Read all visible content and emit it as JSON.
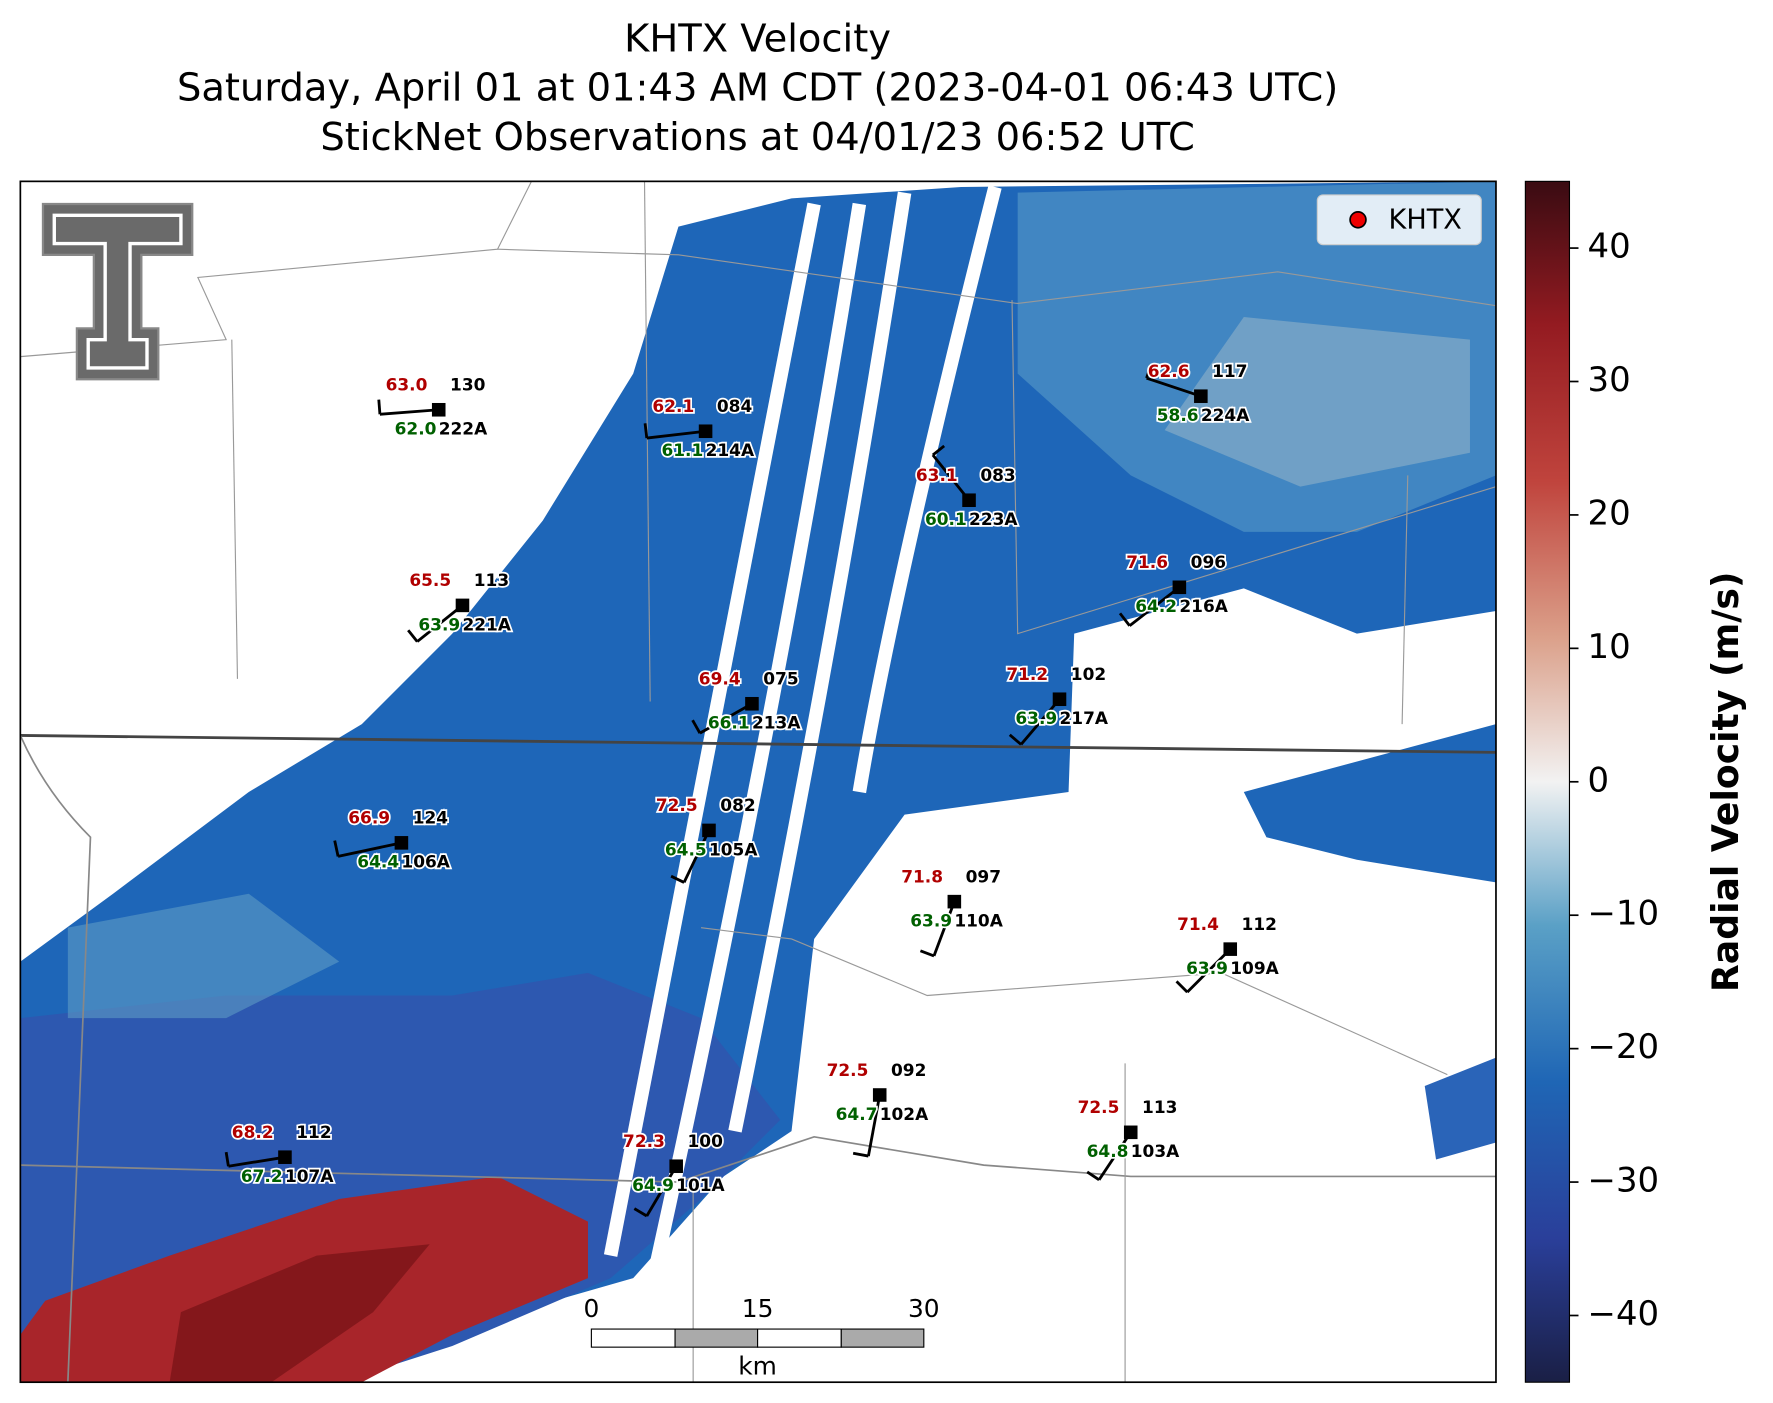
{
  "title": {
    "line1": "KHTX Velocity",
    "line2": "Saturday, April 01 at 01:43 AM CDT (2023-04-01 06:43 UTC)",
    "line3": "StickNet Observations at 04/01/23 06:52 UTC"
  },
  "legend": {
    "label": "KHTX"
  },
  "colorbar": {
    "label": "Radial Velocity (m/s)",
    "lim": [
      -45,
      45
    ],
    "ticks": [
      {
        "value": -40,
        "label": "−40"
      },
      {
        "value": -30,
        "label": "−30"
      },
      {
        "value": -20,
        "label": "−20"
      },
      {
        "value": -10,
        "label": "−10"
      },
      0,
      10,
      20,
      30,
      40
    ]
  },
  "scale_bar": {
    "ticks": [
      "0",
      "15",
      "30"
    ],
    "unit": "km"
  },
  "stations": [
    {
      "temp": "63.0",
      "dewpoint": "62.0",
      "wind_dir": "130",
      "id": "222A"
    },
    {
      "temp": "62.1",
      "dewpoint": "61.1",
      "wind_dir": "084",
      "id": "214A"
    },
    {
      "temp": "62.6",
      "dewpoint": "58.6",
      "wind_dir": "117",
      "id": "224A"
    },
    {
      "temp": "63.1",
      "dewpoint": "60.1",
      "wind_dir": "083",
      "id": "223A"
    },
    {
      "temp": "65.5",
      "dewpoint": "63.9",
      "wind_dir": "113",
      "id": "221A"
    },
    {
      "temp": "71.6",
      "dewpoint": "64.2",
      "wind_dir": "096",
      "id": "216A"
    },
    {
      "temp": "69.4",
      "dewpoint": "66.1",
      "wind_dir": "075",
      "id": "213A"
    },
    {
      "temp": "71.2",
      "dewpoint": "63.9",
      "wind_dir": "102",
      "id": "217A"
    },
    {
      "temp": "66.9",
      "dewpoint": "64.4",
      "wind_dir": "124",
      "id": "106A"
    },
    {
      "temp": "72.5",
      "dewpoint": "64.5",
      "wind_dir": "082",
      "id": "105A"
    },
    {
      "temp": "71.8",
      "dewpoint": "63.9",
      "wind_dir": "097",
      "id": "110A"
    },
    {
      "temp": "71.4",
      "dewpoint": "63.9",
      "wind_dir": "112",
      "id": "109A"
    },
    {
      "temp": "72.5",
      "dewpoint": "64.7",
      "wind_dir": "092",
      "id": "102A"
    },
    {
      "temp": "72.5",
      "dewpoint": "64.8",
      "wind_dir": "113",
      "id": "103A"
    },
    {
      "temp": "68.2",
      "dewpoint": "67.2",
      "wind_dir": "112",
      "id": "107A"
    },
    {
      "temp": "72.3",
      "dewpoint": "64.9",
      "wind_dir": "100",
      "id": "101A"
    }
  ]
}
